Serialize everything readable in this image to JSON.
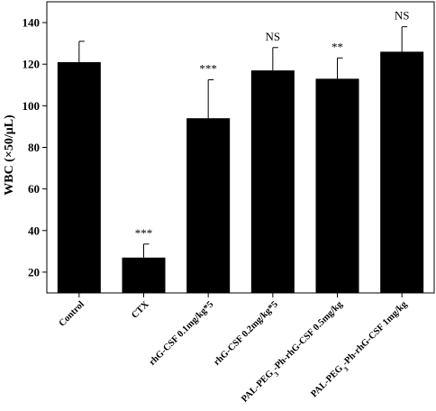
{
  "chart_data": {
    "type": "bar",
    "ylabel": "WBC (×50/μL)",
    "xlabel": "",
    "ylim": [
      10,
      150
    ],
    "yticks": [
      20,
      40,
      60,
      80,
      100,
      120,
      140
    ],
    "grid": false,
    "bar_color": "#000000",
    "categories": [
      "Control",
      "CTX",
      "rhG-CSF 0.1mg/kg*5",
      "rhG-CSF 0.2mg/kg*5",
      "PAL-PEG3-Ph-rhG-CSF 0.5mg/kg",
      "PAL-PEG3-Ph-rhG-CSF 1mg/kg"
    ],
    "category_labels": [
      {
        "pre": "Control",
        "sub": "",
        "post": ""
      },
      {
        "pre": "CTX",
        "sub": "",
        "post": ""
      },
      {
        "pre": "rhG-CSF 0.1mg/kg*5",
        "sub": "",
        "post": ""
      },
      {
        "pre": "rhG-CSF 0.2mg/kg*5",
        "sub": "",
        "post": ""
      },
      {
        "pre": "PAL-PEG",
        "sub": "3",
        "post": "-Ph-rhG-CSF 0.5mg/kg"
      },
      {
        "pre": "PAL-PEG",
        "sub": "3",
        "post": "-Ph-rhG-CSF 1mg/kg"
      }
    ],
    "values": [
      121,
      27,
      94,
      117,
      113,
      126
    ],
    "errors": [
      10,
      6.5,
      18.5,
      11,
      10,
      12
    ],
    "annotations": [
      "",
      "***",
      "***",
      "NS",
      "**",
      "NS"
    ]
  }
}
